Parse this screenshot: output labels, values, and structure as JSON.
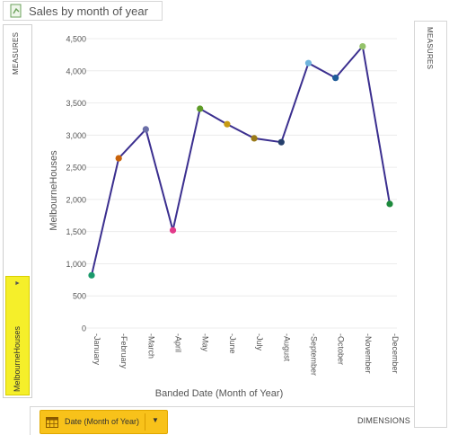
{
  "title": "Sales by month of year",
  "left_panel": {
    "label": "MEASURES",
    "measure_pill": "MelbourneHouses"
  },
  "right_panel": {
    "label": "MEASURES"
  },
  "bottom_bar": {
    "dimension_pill": "Date (Month of Year)",
    "label": "DIMENSIONS"
  },
  "chart_data": {
    "type": "line",
    "xlabel": "Banded Date (Month of Year)",
    "ylabel": "MelbourneHouses",
    "ylim": [
      0,
      4500
    ],
    "yticks": [
      "0",
      "500",
      "1,000",
      "1,500",
      "2,000",
      "2,500",
      "3,000",
      "3,500",
      "4,000",
      "4,500"
    ],
    "categories": [
      "-January",
      "-February",
      "-March",
      "-April",
      "-May",
      "-June",
      "-July",
      "-August",
      "-September",
      "-October",
      "-November",
      "-December"
    ],
    "values": [
      820,
      2640,
      3090,
      1520,
      3410,
      3170,
      2950,
      2890,
      4120,
      3890,
      4380,
      1930
    ],
    "line_color": "#3b2f8f",
    "marker_colors": [
      "#1b9a6b",
      "#c8620a",
      "#6b6fa8",
      "#e23a8a",
      "#5e9b27",
      "#c79a12",
      "#9a7a18",
      "#253f6c",
      "#6fb4dc",
      "#1e5b98",
      "#94c26a",
      "#1d8a3c"
    ]
  }
}
